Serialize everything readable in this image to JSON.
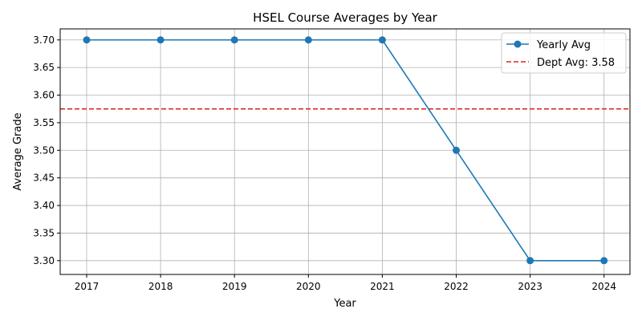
{
  "chart_data": {
    "type": "line",
    "title": "HSEL Course Averages by Year",
    "xlabel": "Year",
    "ylabel": "Average Grade",
    "categories": [
      "2017",
      "2018",
      "2019",
      "2020",
      "2021",
      "2022",
      "2023",
      "2024"
    ],
    "series": [
      {
        "name": "Yearly Avg",
        "values": [
          3.7,
          3.7,
          3.7,
          3.7,
          3.7,
          3.5,
          3.3,
          3.3
        ],
        "color": "#1f77b4",
        "marker": "circle"
      }
    ],
    "reference_line": {
      "label": "Dept Avg: 3.58",
      "value": 3.575,
      "color": "#d62728",
      "style": "dashed"
    },
    "ylim": [
      3.275,
      3.72
    ],
    "y_ticks": [
      "3.30",
      "3.35",
      "3.40",
      "3.45",
      "3.50",
      "3.55",
      "3.60",
      "3.65",
      "3.70"
    ],
    "grid": true,
    "legend_position": "top-right"
  }
}
